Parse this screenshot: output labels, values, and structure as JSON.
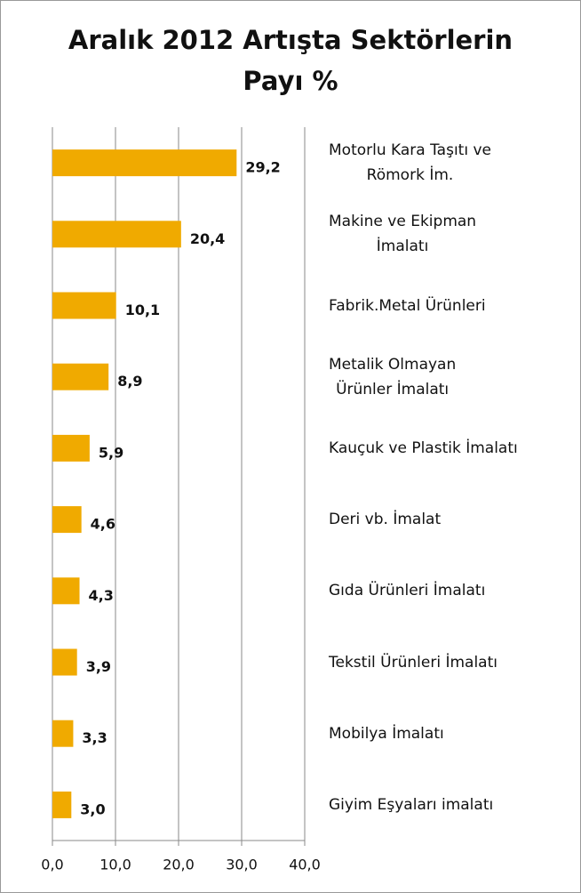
{
  "chart_data": {
    "type": "bar",
    "orientation": "horizontal",
    "title": "Aralık 2012 Artışta Sektörlerin\nPayı %",
    "categories": [
      "Motorlu Kara Taşıtı ve\nRömork İm.",
      "Makine ve Ekipman\nİmalatı",
      "Fabrik.Metal Ürünleri",
      "Metalik Olmayan\nÜrünler İmalatı",
      "Kauçuk ve Plastik İmalatı",
      "Deri  vb. İmalat",
      "Gıda Ürünleri İmalatı",
      "Tekstil Ürünleri İmalatı",
      "Mobilya İmalatı",
      "Giyim Eşyaları imalatı"
    ],
    "values": [
      29.2,
      20.4,
      10.1,
      8.9,
      5.9,
      4.6,
      4.3,
      3.9,
      3.3,
      3.0
    ],
    "value_labels": [
      "29,2",
      "20,4",
      "10,1",
      "8,9",
      "5,9",
      "4,6",
      "4,3",
      "3,9",
      "3,3",
      "3,0"
    ],
    "color": "#f0aa00",
    "xlim": [
      0,
      40
    ],
    "xticks": [
      {
        "value": 0,
        "label": "0,0"
      },
      {
        "value": 10,
        "label": "10,0"
      },
      {
        "value": 20,
        "label": "20,0"
      },
      {
        "value": 30,
        "label": "30,0"
      },
      {
        "value": 40,
        "label": "40,0"
      }
    ],
    "grid": true
  }
}
